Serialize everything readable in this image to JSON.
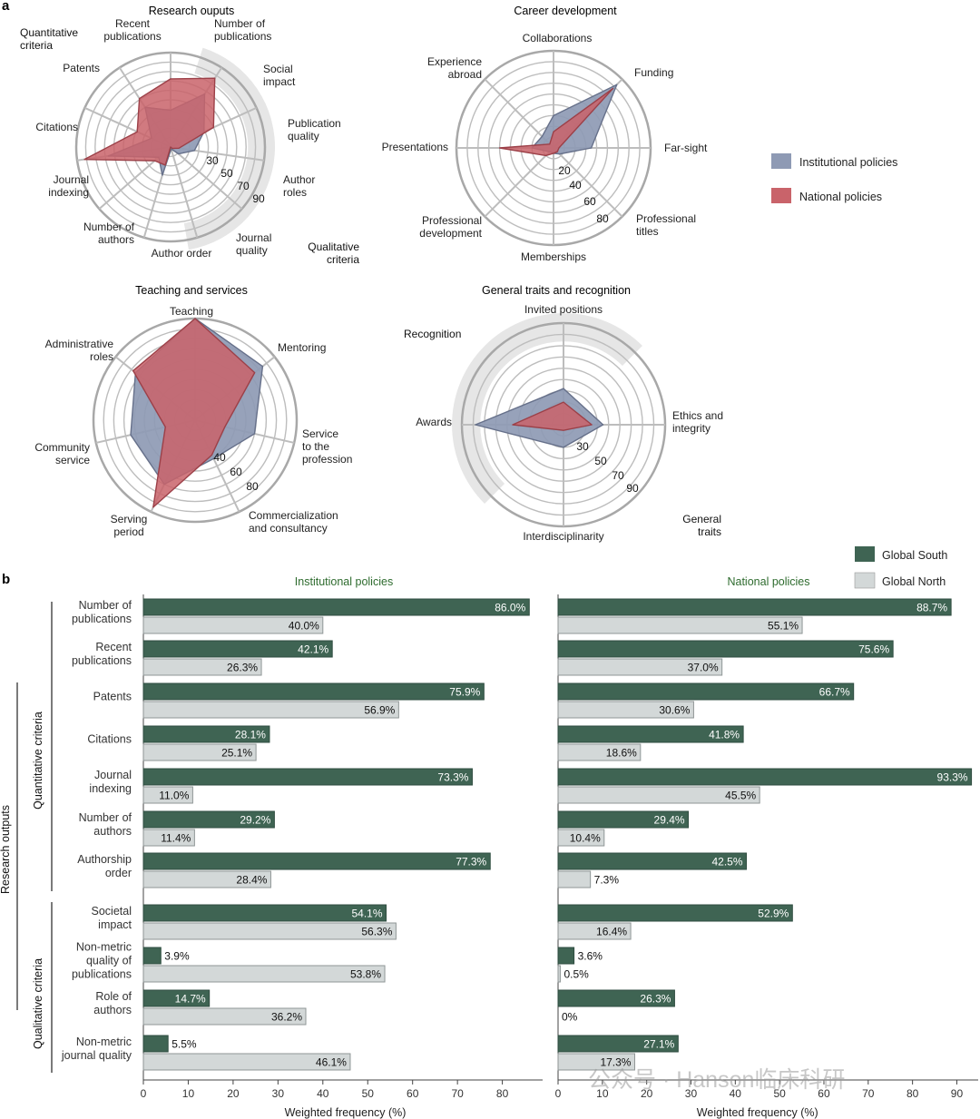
{
  "panel_labels": [
    "a",
    "b"
  ],
  "colors": {
    "institutional": "#8e9ab4",
    "national": "#c9636a",
    "global_south": "#3f6453",
    "global_north": "#d3d8d8",
    "grid": "#bdbdbd",
    "shade": "#e6e6e6",
    "group_title": "#2e6b2e"
  },
  "legend_radar": [
    {
      "key": "institutional",
      "label": "Institutional  policies"
    },
    {
      "key": "national",
      "label": "National  policies"
    }
  ],
  "legend_bars": [
    {
      "key": "global_south",
      "label": "Global South"
    },
    {
      "key": "global_north",
      "label": "Global North"
    }
  ],
  "sector_labels": {
    "quantitative_criteria": "Quantitative criteria",
    "qualitative_criteria": "Qualitative criteria",
    "recognition": "Recognition",
    "general_traits": "General traits"
  },
  "watermark": "公众号 · Hanson临床科研",
  "chart_data": [
    {
      "type": "radar",
      "id": "research_outputs",
      "title": "Research ouputs",
      "axes": [
        "Recent publications",
        "Number of publications",
        "Social impact",
        "Publication quality",
        "Author roles",
        "Journal quality",
        "Author order",
        "Number of authors",
        "Journal indexing",
        "Citations",
        "Patents"
      ],
      "ring_labels": [
        "30",
        "50",
        "70",
        "90"
      ],
      "rlim": [
        10,
        100
      ],
      "series": [
        {
          "name": "Institutional  policies",
          "values": [
            45,
            70,
            45,
            33,
            20,
            12,
            38,
            25,
            70,
            30,
            55
          ]
        },
        {
          "name": "National  policies",
          "values": [
            75,
            88,
            55,
            18,
            12,
            10,
            28,
            30,
            93,
            45,
            65
          ]
        }
      ]
    },
    {
      "type": "radar",
      "id": "career_development",
      "title": "Career development",
      "axes": [
        "Collaborations",
        "Funding",
        "Far-sight",
        "Professional titles",
        "Memberships",
        "Professional development",
        "Presentations",
        "Experience abroad"
      ],
      "ring_labels": [
        "20",
        "40",
        "60",
        "80"
      ],
      "rlim": [
        10,
        100
      ],
      "series": [
        {
          "name": "Institutional  policies",
          "values": [
            40,
            93,
            45,
            18,
            15,
            15,
            30,
            25
          ]
        },
        {
          "name": "National  policies",
          "values": [
            25,
            88,
            15,
            15,
            15,
            20,
            60,
            15
          ]
        }
      ]
    },
    {
      "type": "radar",
      "id": "teaching_and_services",
      "title": "Teaching and services",
      "axes": [
        "Teaching",
        "Mentoring",
        "Service to the profession",
        "Commercialization and consultancy",
        "Serving period",
        "Community service",
        "Administrative roles"
      ],
      "ring_labels": [
        "40",
        "60",
        "80"
      ],
      "rlim": [
        0,
        100
      ],
      "series": [
        {
          "name": "Institutional  policies",
          "values": [
            100,
            85,
            60,
            42,
            70,
            65,
            75
          ]
        },
        {
          "name": "National  policies",
          "values": [
            100,
            75,
            30,
            38,
            95,
            30,
            78
          ]
        }
      ]
    },
    {
      "type": "radar",
      "id": "general_traits_and_recognition",
      "title": "General traits and recognition",
      "axes": [
        "Invited positions",
        "Ethics and integrity",
        "Interdisciplinarity",
        "Awards"
      ],
      "ring_labels": [
        "30",
        "50",
        "70",
        "90"
      ],
      "rlim": [
        10,
        100
      ],
      "series": [
        {
          "name": "Institutional  policies",
          "values": [
            42,
            45,
            30,
            88
          ]
        },
        {
          "name": "National  policies",
          "values": [
            30,
            35,
            15,
            55
          ]
        }
      ]
    },
    {
      "type": "bar",
      "orientation": "horizontal",
      "id": "institutional_bars",
      "title": "Institutional policies",
      "xlabel": "Weighted frequency (%)",
      "xlim": [
        0,
        88
      ],
      "xticks": [
        0,
        10,
        20,
        30,
        40,
        50,
        60,
        70,
        80
      ],
      "categories": [
        "Number of\npublications",
        "Recent\npublications",
        "Patents",
        "Citations",
        "Journal\nindexing",
        "Number of\nauthors",
        "Authorship\norder",
        "Societal\nimpact",
        "Non-metric\nquality of\npublications",
        "Role of\nauthors",
        "Non-metric\njournal quality"
      ],
      "series": [
        {
          "name": "Global South",
          "values": [
            86.0,
            42.1,
            75.9,
            28.1,
            73.3,
            29.2,
            77.3,
            54.1,
            3.9,
            14.7,
            5.5
          ],
          "labels": [
            "86.0%",
            "42.1%",
            "75.9%",
            "28.1%",
            "73.3%",
            "29.2%",
            "77.3%",
            "54.1%",
            "3.9%",
            "14.7%",
            "5.5%"
          ]
        },
        {
          "name": "Global North",
          "values": [
            40.0,
            26.3,
            56.9,
            25.1,
            11.0,
            11.4,
            28.4,
            56.3,
            53.8,
            36.2,
            46.1
          ],
          "labels": [
            "40.0%",
            "26.3%",
            "56.9%",
            "25.1%",
            "11.0%",
            "11.4%",
            "28.4%",
            "56.3%",
            "53.8%",
            "36.2%",
            "46.1%"
          ]
        }
      ],
      "group_labels": {
        "outer": "Research outputs",
        "quantitative": "Quantitative criteria",
        "qualitative": "Qualitative criteria"
      }
    },
    {
      "type": "bar",
      "orientation": "horizontal",
      "id": "national_bars",
      "title": "National policies",
      "xlabel": "Weighted frequency (%)",
      "xlim": [
        0,
        95
      ],
      "xticks": [
        0,
        10,
        20,
        30,
        40,
        50,
        60,
        70,
        80,
        90
      ],
      "categories": [
        "Number of\npublications",
        "Recent\npublications",
        "Patents",
        "Citations",
        "Journal\nindexing",
        "Number of\nauthors",
        "Authorship\norder",
        "Societal\nimpact",
        "Non-metric\nquality of\npublications",
        "Role of\nauthors",
        "Non-metric\njournal quality"
      ],
      "series": [
        {
          "name": "Global South",
          "values": [
            88.7,
            75.6,
            66.7,
            41.8,
            93.3,
            29.4,
            42.5,
            52.9,
            3.6,
            26.3,
            27.1
          ],
          "labels": [
            "88.7%",
            "75.6%",
            "66.7%",
            "41.8%",
            "93.3%",
            "29.4%",
            "42.5%",
            "52.9%",
            "3.6%",
            "26.3%",
            "27.1%"
          ]
        },
        {
          "name": "Global North",
          "values": [
            55.1,
            37.0,
            30.6,
            18.6,
            45.5,
            10.4,
            7.3,
            16.4,
            0.5,
            0,
            17.3
          ],
          "labels": [
            "55.1%",
            "37.0%",
            "30.6%",
            "18.6%",
            "45.5%",
            "10.4%",
            "7.3%",
            "16.4%",
            "0.5%",
            "0%",
            "17.3%"
          ]
        }
      ]
    }
  ]
}
